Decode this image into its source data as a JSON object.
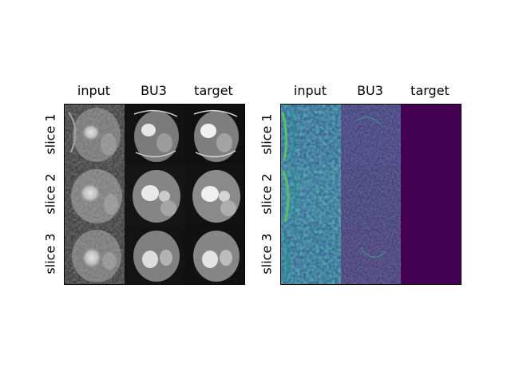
{
  "left_panel": {
    "columns": [
      "input",
      "BU3",
      "target"
    ],
    "rows": [
      "slice 1",
      "slice 2",
      "slice 3"
    ]
  },
  "right_panel": {
    "columns": [
      "input",
      "BU3",
      "target"
    ],
    "rows": [
      "slice 1",
      "slice 2",
      "slice 3"
    ],
    "colormap": "viridis",
    "colors": {
      "low": "#440154",
      "mid": "#3b528b",
      "high": "#21918c",
      "peak": "#5ec962",
      "max": "#fde725"
    }
  }
}
